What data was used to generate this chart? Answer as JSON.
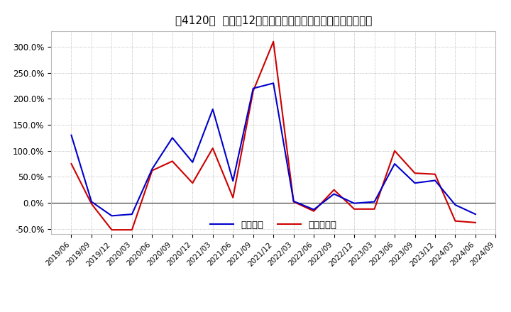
{
  "title": "［4120］  利益の12か月移動合計の対前年同期増減率の推移",
  "legend_labels": [
    "経常利益",
    "当期純利益"
  ],
  "line_colors": [
    "#0000cc",
    "#cc0000"
  ],
  "background_color": "#ffffff",
  "plot_bg_color": "#ffffff",
  "grid_color": "#999999",
  "dates": [
    "2019/06",
    "2019/09",
    "2019/12",
    "2020/03",
    "2020/06",
    "2020/09",
    "2020/12",
    "2021/03",
    "2021/06",
    "2021/09",
    "2021/12",
    "2022/03",
    "2022/06",
    "2022/09",
    "2022/12",
    "2023/03",
    "2023/06",
    "2023/09",
    "2023/12",
    "2024/03",
    "2024/06",
    "2024/09"
  ],
  "series1": [
    1.3,
    0.02,
    -0.25,
    -0.22,
    0.65,
    1.25,
    0.78,
    1.8,
    0.42,
    2.2,
    2.3,
    0.03,
    -0.13,
    0.17,
    -0.01,
    0.02,
    0.75,
    0.38,
    0.43,
    -0.04,
    -0.22,
    null
  ],
  "series2": [
    0.75,
    -0.02,
    -0.52,
    -0.52,
    0.62,
    0.8,
    0.38,
    1.05,
    0.1,
    2.15,
    3.1,
    0.02,
    -0.16,
    0.25,
    -0.12,
    -0.12,
    1.0,
    0.57,
    0.55,
    -0.35,
    -0.38,
    null
  ],
  "ylim": [
    -0.6,
    3.3
  ],
  "yticks": [
    -0.5,
    0.0,
    0.5,
    1.0,
    1.5,
    2.0,
    2.5,
    3.0
  ],
  "ytick_labels": [
    "-50.0%",
    "0.0%",
    "50.0%",
    "100.0%",
    "150.0%",
    "200.0%",
    "250.0%",
    "300.0%"
  ]
}
